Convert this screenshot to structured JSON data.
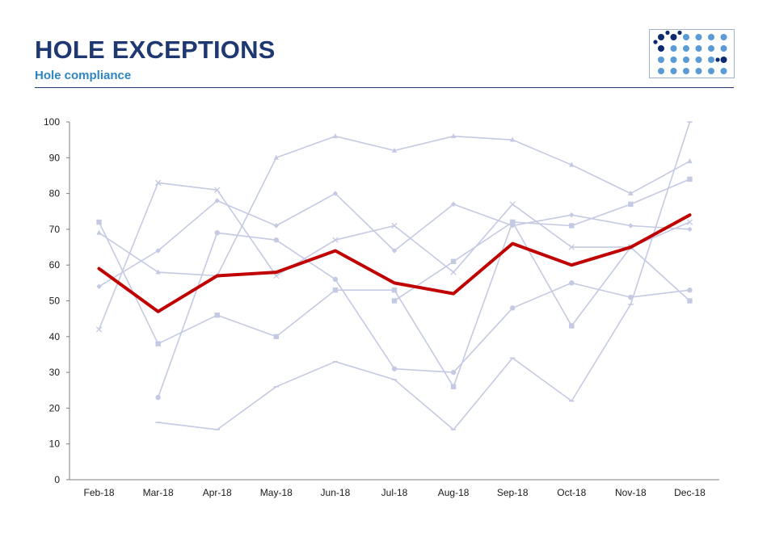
{
  "header": {
    "title": "HOLE EXCEPTIONS",
    "subtitle": "Hole compliance"
  },
  "logo": {
    "icon": "dot-grid-logo-icon"
  },
  "colors": {
    "highlight": "#c00000",
    "background_series": "#c5cae3",
    "title": "#1f3871",
    "subtitle": "#2e86c1",
    "logo_dot_light": "#5b9bd5",
    "logo_dot_dark": "#0d2a6e"
  },
  "chart_data": {
    "type": "line",
    "categories": [
      "Feb-18",
      "Mar-18",
      "Apr-18",
      "May-18",
      "Jun-18",
      "Jul-18",
      "Aug-18",
      "Sep-18",
      "Oct-18",
      "Nov-18",
      "Dec-18"
    ],
    "ylim": [
      0,
      100
    ],
    "yticks": [
      0,
      10,
      20,
      30,
      40,
      50,
      60,
      70,
      80,
      90,
      100
    ],
    "grid": false,
    "legend": "none",
    "series": [
      {
        "marker": "triangle",
        "highlight": false,
        "values": [
          69,
          58,
          57,
          90,
          96,
          92,
          96,
          95,
          88,
          80,
          89
        ]
      },
      {
        "marker": "square",
        "highlight": false,
        "values": [
          72,
          38,
          46,
          40,
          53,
          53,
          26,
          72,
          43,
          65,
          50
        ]
      },
      {
        "marker": "diamond",
        "highlight": false,
        "values": [
          54,
          64,
          78,
          71,
          80,
          64,
          77,
          71,
          74,
          71,
          70
        ]
      },
      {
        "marker": "x",
        "highlight": false,
        "values": [
          42,
          83,
          81,
          57,
          67,
          71,
          58,
          77,
          65,
          65,
          72
        ]
      },
      {
        "marker": "circle",
        "highlight": false,
        "values": [
          null,
          23,
          69,
          67,
          56,
          31,
          30,
          48,
          55,
          51,
          53
        ]
      },
      {
        "marker": "square",
        "highlight": false,
        "values": [
          null,
          null,
          null,
          null,
          null,
          50,
          61,
          72,
          71,
          77,
          84
        ]
      },
      {
        "marker": "dash",
        "highlight": false,
        "values": [
          null,
          16,
          14,
          26,
          33,
          28,
          14,
          34,
          22,
          49,
          100
        ]
      },
      {
        "marker": "none",
        "highlight": true,
        "values": [
          59,
          47,
          57,
          58,
          64,
          55,
          52,
          66,
          60,
          65,
          74
        ]
      }
    ]
  }
}
